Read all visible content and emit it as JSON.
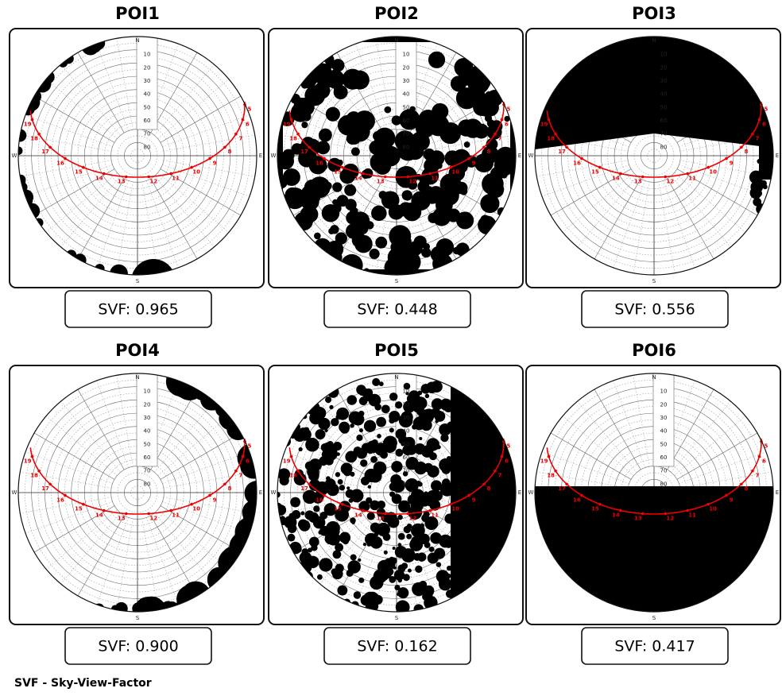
{
  "panels": [
    {
      "title": "POI1",
      "svf": "SVF: 0.965"
    },
    {
      "title": "POI2",
      "svf": "SVF: 0.448"
    },
    {
      "title": "POI3",
      "svf": "SVF: 0.556"
    },
    {
      "title": "POI4",
      "svf": "SVF: 0.900"
    },
    {
      "title": "POI5",
      "svf": "SVF: 0.162"
    },
    {
      "title": "POI6",
      "svf": "SVF: 0.417"
    }
  ],
  "compass": [
    "N",
    "E",
    "S",
    "W"
  ],
  "altitude_labels": [
    "10",
    "20",
    "30",
    "40",
    "50",
    "60",
    "70",
    "80"
  ],
  "hour_labels": [
    "5",
    "6",
    "7",
    "8",
    "9",
    "10",
    "11",
    "12",
    "13",
    "14",
    "15",
    "16",
    "17",
    "18",
    "19"
  ],
  "footer": "SVF - Sky-View-Factor"
}
